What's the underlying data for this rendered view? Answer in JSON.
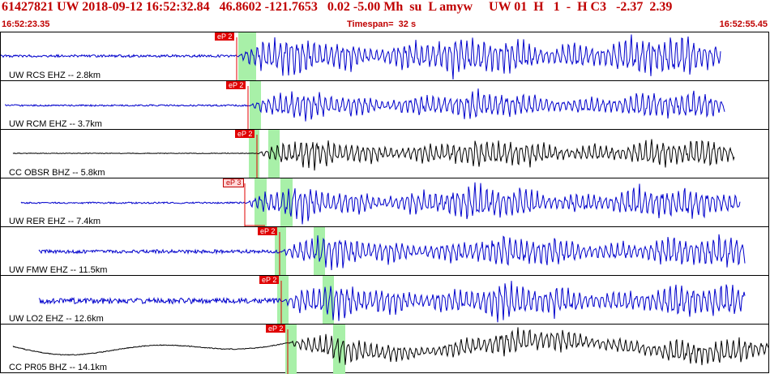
{
  "header": {
    "title": "61427821 UW 2018-09-12 16:52:32.84   46.8602 -121.7653   0.02 -5.00 Mh  su  L amyw     UW 01  H   1  -  H C3   -2.37  2.39",
    "start_time": "16:52:23.35",
    "timespan": "Timespan=  32 s",
    "end_time": "16:52:55.45"
  },
  "colors": {
    "header": "#c00000",
    "trace_blue": "#0000cc",
    "trace_black": "#000000",
    "pick": "#e00000",
    "window": "#a8f0a8"
  },
  "traces": [
    {
      "label": "UW RCS EHZ -- 2.8km",
      "pick": "eP 2",
      "color": "blue",
      "pick_style": "solid"
    },
    {
      "label": "UW RCM EHZ -- 3.7km",
      "pick": "eP 2",
      "color": "blue",
      "pick_style": "solid"
    },
    {
      "label": "CC OBSR BHZ -- 5.8km",
      "pick": "eP 2",
      "color": "black",
      "pick_style": "solid"
    },
    {
      "label": "UW RER EHZ -- 7.4km",
      "pick": "eP 3",
      "color": "blue",
      "pick_style": "light"
    },
    {
      "label": "UW FMW EHZ -- 11.5km",
      "pick": "eP 2",
      "color": "blue",
      "pick_style": "solid"
    },
    {
      "label": "UW LO2 EHZ -- 12.6km",
      "pick": "eP 2",
      "color": "blue",
      "pick_style": "solid"
    },
    {
      "label": "CC PR05 BHZ -- 14.1km",
      "pick": "eP 2",
      "color": "black",
      "pick_style": "solid"
    }
  ]
}
